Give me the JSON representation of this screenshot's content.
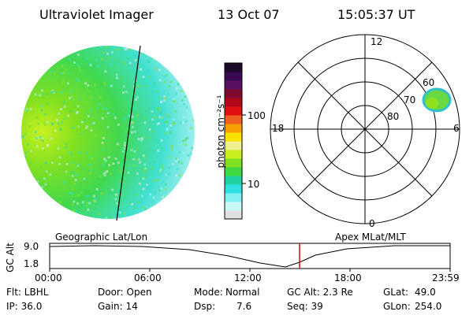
{
  "header": {
    "title": "Ultraviolet Imager",
    "date": "13 Oct 07",
    "time": "15:05:37 UT"
  },
  "colorbar": {
    "label": "photon cm⁻²s⁻¹",
    "ticks": [
      "100",
      "10"
    ],
    "colors": [
      "#1a0a28",
      "#3a0a50",
      "#5a1060",
      "#800a30",
      "#b00818",
      "#e01010",
      "#f06020",
      "#f8a000",
      "#f8e000",
      "#f0f090",
      "#c8f020",
      "#80e020",
      "#40d840",
      "#20d0a0",
      "#30e0e0",
      "#80f0f0",
      "#c8f8f8",
      "#e0e0e0"
    ]
  },
  "polar": {
    "mlt_labels": {
      "top": "12",
      "left": "18",
      "right": "6",
      "bottom": "0"
    },
    "lat_labels": [
      "60",
      "70",
      "80"
    ]
  },
  "timeline": {
    "left_title": "Geographic Lat/Lon",
    "right_title": "Apex MLat/MLT",
    "axis_label": "GC Alt",
    "y_ticks": [
      "9.0",
      "1.8"
    ],
    "x_ticks": [
      "00:00",
      "06:00",
      "12:00",
      "18:00",
      "23:59"
    ],
    "marker_color": "#e00000"
  },
  "info": {
    "filter": "Flt: LBHL",
    "door": "Door: Open",
    "mode_label": "Mode:",
    "mode_value": "Normal",
    "gc_alt": "GC Alt: 2.3 Re",
    "glat_label": "GLat:",
    "glat_value": "49.0",
    "ip": "IP: 36.0",
    "gain": "Gain: 14",
    "dsp_label": "Dsp:",
    "dsp_value": "7.6",
    "seq": "Seq: 39",
    "glon_label": "GLon:",
    "glon_value": "254.0"
  }
}
